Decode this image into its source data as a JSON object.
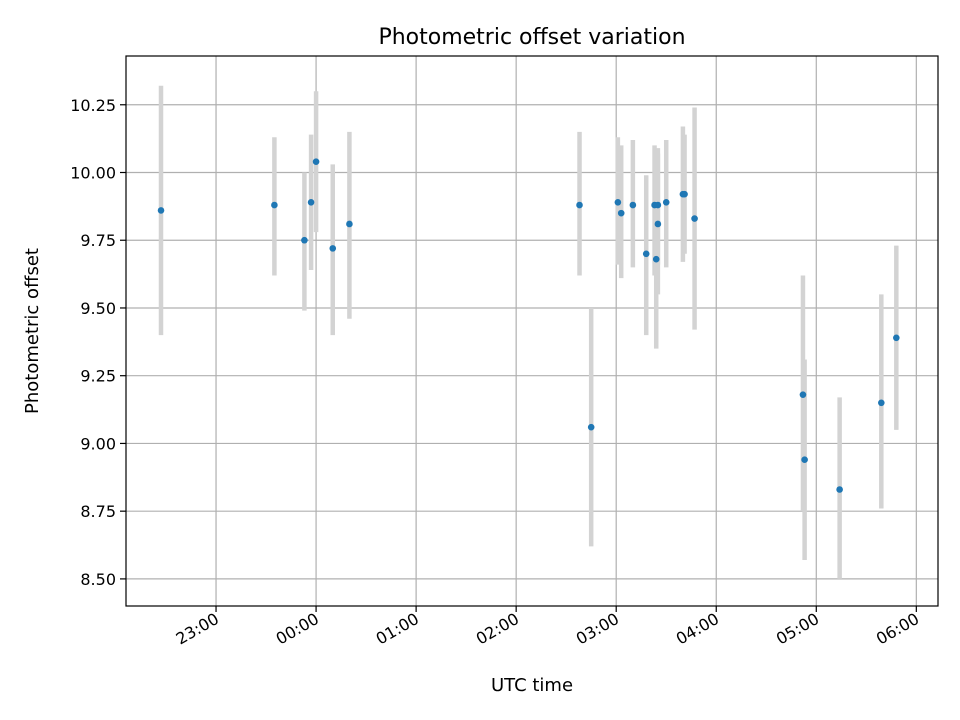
{
  "chart_data": {
    "type": "scatter",
    "title": "Photometric offset variation",
    "xlabel": "UTC time",
    "ylabel": "Photometric offset",
    "x_axis": "time",
    "xlim": [
      "22:06",
      "06:13"
    ],
    "ylim": [
      8.4,
      10.43
    ],
    "xticks": [
      "23:00",
      "00:00",
      "01:00",
      "02:00",
      "03:00",
      "04:00",
      "05:00",
      "06:00"
    ],
    "yticks": [
      "8.50",
      "8.75",
      "9.00",
      "9.25",
      "9.50",
      "9.75",
      "10.00",
      "10.25"
    ],
    "grid": true,
    "colors": {
      "points": "#1f77b4",
      "errorbars": "#d3d3d3",
      "grid": "#b0b0b0"
    },
    "points": [
      {
        "t": "22:27",
        "y": 9.86,
        "ylow": 9.4,
        "yhigh": 10.32
      },
      {
        "t": "23:35",
        "y": 9.88,
        "ylow": 9.62,
        "yhigh": 10.13
      },
      {
        "t": "23:53",
        "y": 9.75,
        "ylow": 9.49,
        "yhigh": 10.0
      },
      {
        "t": "23:57",
        "y": 9.89,
        "ylow": 9.64,
        "yhigh": 10.14
      },
      {
        "t": "00:00",
        "y": 10.04,
        "ylow": 9.78,
        "yhigh": 10.3
      },
      {
        "t": "00:10",
        "y": 9.72,
        "ylow": 9.4,
        "yhigh": 10.03
      },
      {
        "t": "00:20",
        "y": 9.81,
        "ylow": 9.46,
        "yhigh": 10.15
      },
      {
        "t": "02:38",
        "y": 9.88,
        "ylow": 9.62,
        "yhigh": 10.15
      },
      {
        "t": "02:45",
        "y": 9.06,
        "ylow": 8.62,
        "yhigh": 9.5
      },
      {
        "t": "03:01",
        "y": 9.89,
        "ylow": 9.66,
        "yhigh": 10.13
      },
      {
        "t": "03:03",
        "y": 9.85,
        "ylow": 9.61,
        "yhigh": 10.1
      },
      {
        "t": "03:10",
        "y": 9.88,
        "ylow": 9.65,
        "yhigh": 10.12
      },
      {
        "t": "03:18",
        "y": 9.7,
        "ylow": 9.4,
        "yhigh": 9.99
      },
      {
        "t": "03:23",
        "y": 9.88,
        "ylow": 9.62,
        "yhigh": 10.1
      },
      {
        "t": "03:24",
        "y": 9.68,
        "ylow": 9.35,
        "yhigh": 10.01
      },
      {
        "t": "03:25",
        "y": 9.81,
        "ylow": 9.55,
        "yhigh": 10.07
      },
      {
        "t": "03:25",
        "y": 9.88,
        "ylow": 9.66,
        "yhigh": 10.09
      },
      {
        "t": "03:30",
        "y": 9.89,
        "ylow": 9.65,
        "yhigh": 10.12
      },
      {
        "t": "03:40",
        "y": 9.92,
        "ylow": 9.67,
        "yhigh": 10.17
      },
      {
        "t": "03:41",
        "y": 9.92,
        "ylow": 9.7,
        "yhigh": 10.14
      },
      {
        "t": "03:47",
        "y": 9.83,
        "ylow": 9.42,
        "yhigh": 10.24
      },
      {
        "t": "04:52",
        "y": 9.18,
        "ylow": 8.75,
        "yhigh": 9.62
      },
      {
        "t": "04:53",
        "y": 8.94,
        "ylow": 8.57,
        "yhigh": 9.31
      },
      {
        "t": "05:14",
        "y": 8.83,
        "ylow": 8.5,
        "yhigh": 9.17
      },
      {
        "t": "05:39",
        "y": 9.15,
        "ylow": 8.76,
        "yhigh": 9.55
      },
      {
        "t": "05:48",
        "y": 9.39,
        "ylow": 9.05,
        "yhigh": 9.73
      }
    ]
  }
}
